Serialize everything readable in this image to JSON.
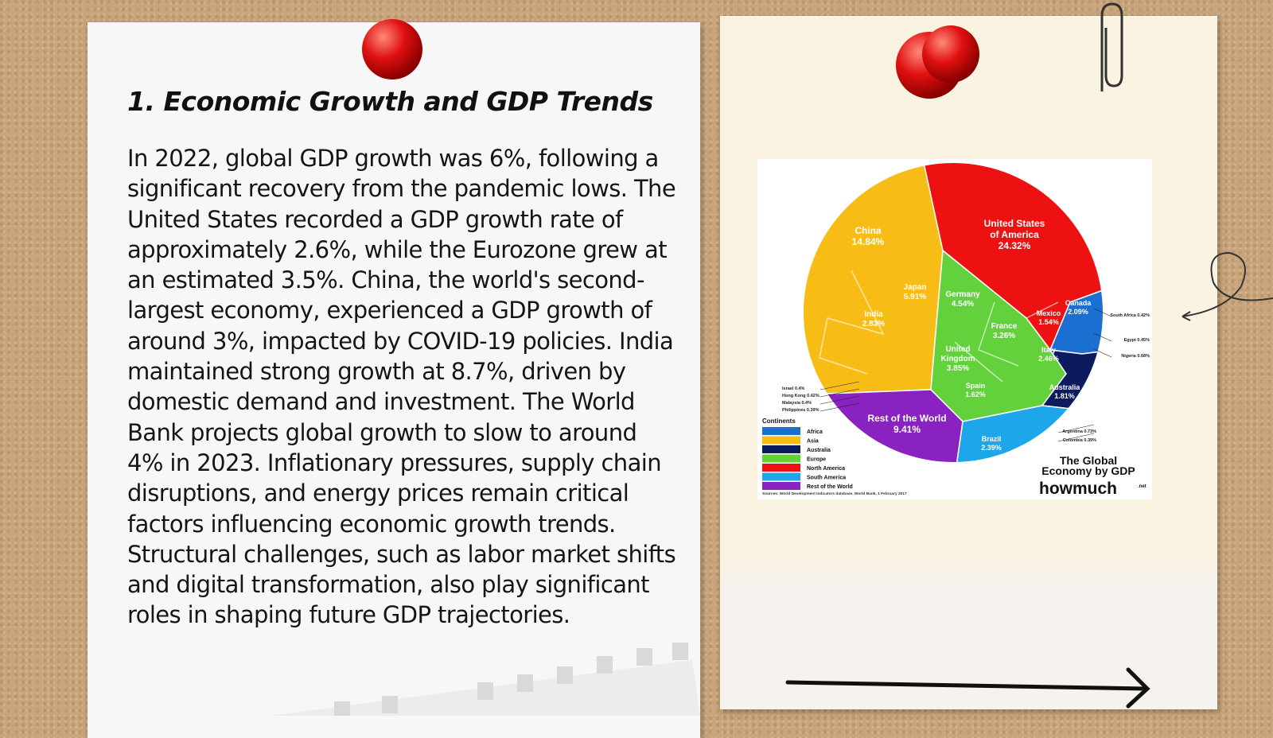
{
  "slide": {
    "title": "1. Economic Growth and GDP Trends",
    "body": "In 2022, global GDP growth was 6%, following a significant recovery from the pandemic lows. The United States recorded a GDP growth rate of approximately 2.6%, while the Eurozone grew at an estimated 3.5%. China, the world's second-largest economy, experienced a GDP growth of around 3%, impacted by COVID-19 policies. India maintained strong growth at 8.7%, driven by domestic demand and investment. The World Bank projects global growth to slow to around 4% in 2023. Inflationary pressures, supply chain disruptions, and energy prices remain critical factors influencing economic growth trends. Structural challenges, such as labor market shifts and digital transformation, also play significant roles in shaping future GDP trajectories."
  },
  "infographic": {
    "title": "The Global Economy by GDP",
    "brand": "howmuch",
    "brand_suffix": ".net",
    "source": "Sources: World Development Indicators database, World Bank, 1 February 2017",
    "legend_title": "Continents",
    "legend": [
      {
        "name": "Africa",
        "color": "#1a6fd0"
      },
      {
        "name": "Asia",
        "color": "#f7bd16"
      },
      {
        "name": "Australia",
        "color": "#0c1a5e"
      },
      {
        "name": "Europe",
        "color": "#63d13c"
      },
      {
        "name": "North America",
        "color": "#ee1111"
      },
      {
        "name": "South America",
        "color": "#1ea6ea"
      },
      {
        "name": "Rest of the World",
        "color": "#8a22c2"
      }
    ],
    "regions": [
      {
        "name": "United States of America",
        "share": "24.32%"
      },
      {
        "name": "China",
        "share": "14.84%"
      },
      {
        "name": "Japan",
        "share": "5.91%"
      },
      {
        "name": "Germany",
        "share": "4.54%"
      },
      {
        "name": "United Kingdom",
        "share": "3.85%"
      },
      {
        "name": "France",
        "share": "3.26%"
      },
      {
        "name": "India",
        "share": "2.83%"
      },
      {
        "name": "Italy",
        "share": "2.46%"
      },
      {
        "name": "Brazil",
        "share": "2.39%"
      },
      {
        "name": "Canada",
        "share": "2.09%"
      },
      {
        "name": "Australia",
        "share": "1.81%"
      },
      {
        "name": "Spain",
        "share": "1.62%"
      },
      {
        "name": "Mexico",
        "share": "1.54%"
      },
      {
        "name": "Rest of the World",
        "share": "9.41%"
      }
    ],
    "small_labels": [
      "South Africa 0.42%",
      "Egypt 0.45%",
      "Nigeria 0.68%",
      "Israel 0.4%",
      "Hong Kong 0.42%",
      "Malaysia 0.4%",
      "Philippines 0.39%",
      "Argentina 0.73%",
      "Colombia 0.39%"
    ]
  }
}
